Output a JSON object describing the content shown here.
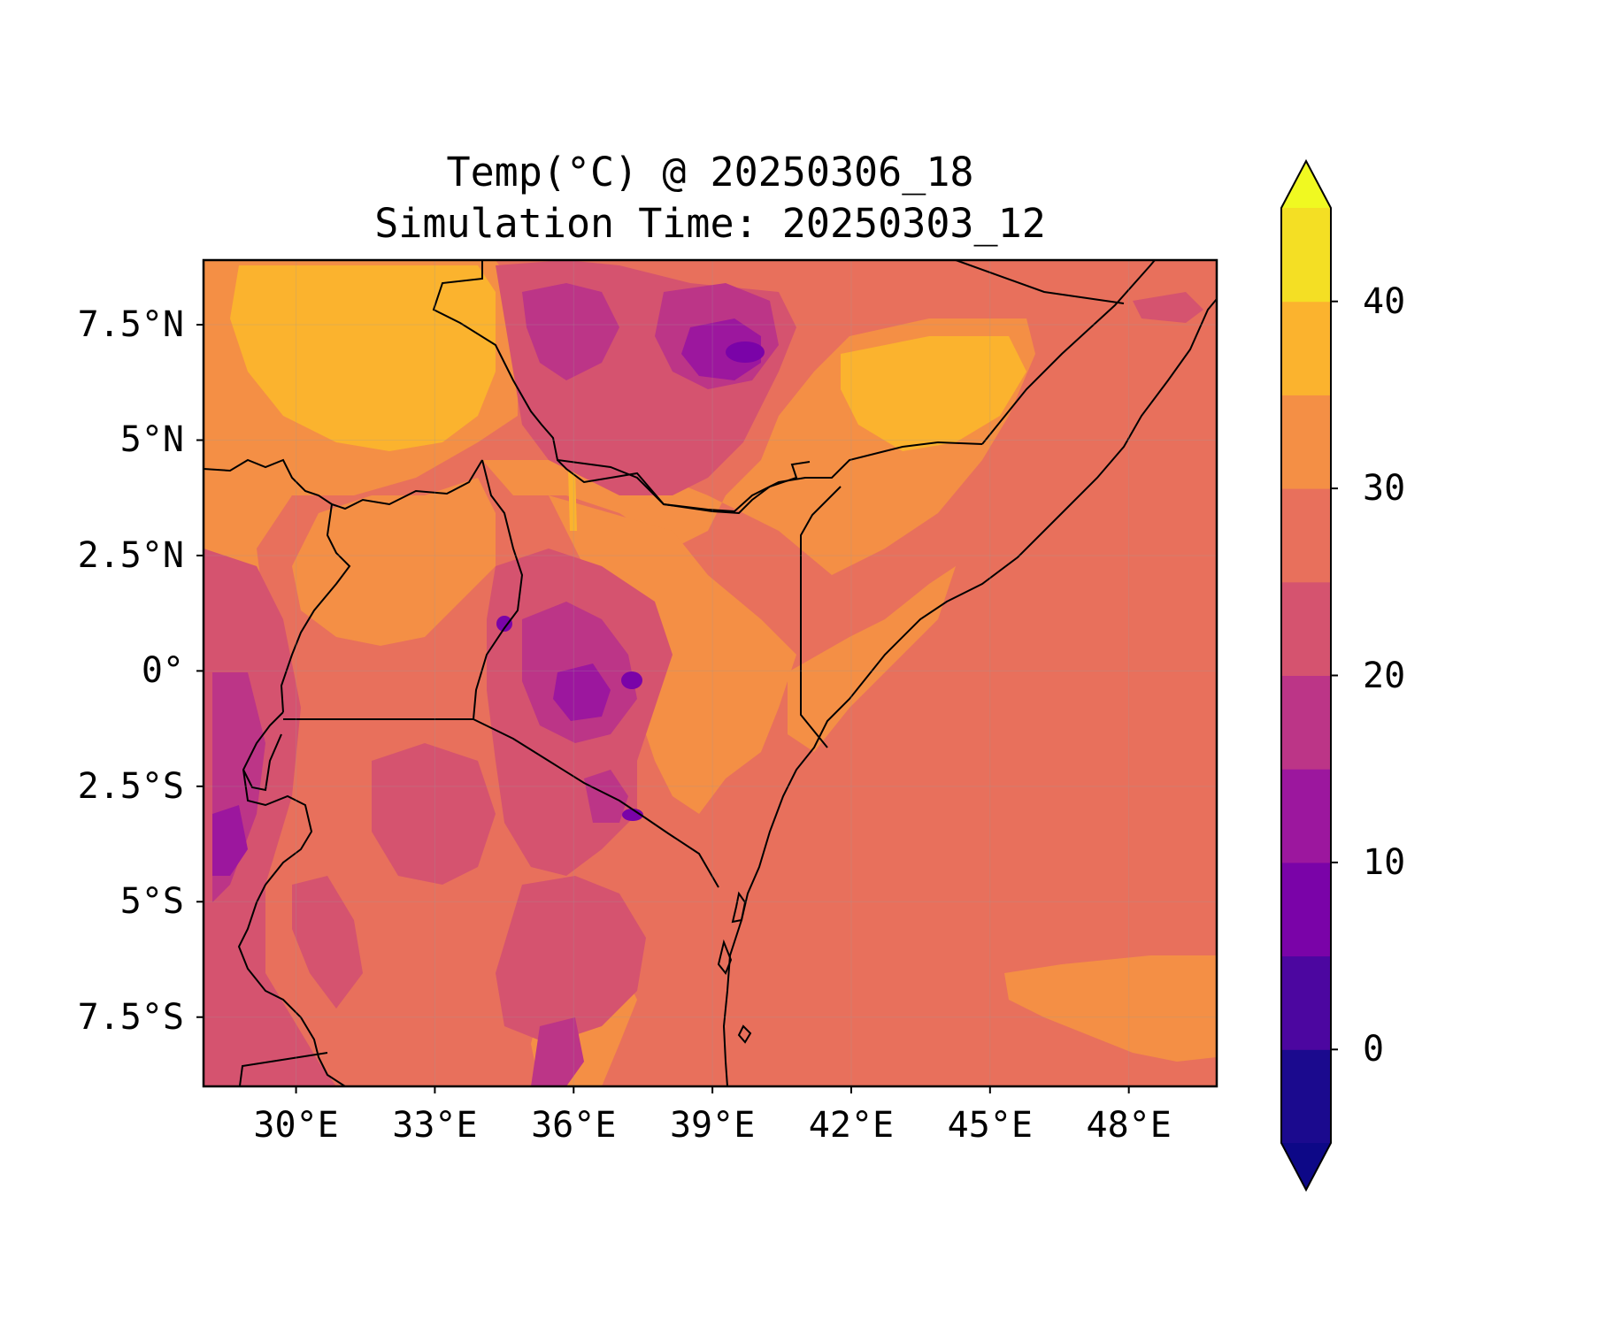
{
  "figure": {
    "title_line1": "Temp(°C) @ 20250306_18",
    "title_line2": "Simulation Time: 20250303_12"
  },
  "map": {
    "extent": {
      "lon_min": 28,
      "lon_max": 49.9,
      "lat_min": -9,
      "lat_max": 8.9
    },
    "lon_ticks": [
      30,
      33,
      36,
      39,
      42,
      45,
      48
    ],
    "lon_tick_labels": [
      "30°E",
      "33°E",
      "36°E",
      "39°E",
      "42°E",
      "45°E",
      "48°E"
    ],
    "lat_ticks": [
      7.5,
      5,
      2.5,
      0,
      -2.5,
      -5,
      -7.5
    ],
    "lat_tick_labels": [
      "7.5°N",
      "5°N",
      "2.5°N",
      "0°",
      "2.5°S",
      "5°S",
      "7.5°S"
    ]
  },
  "colorbar": {
    "levels": [
      -5,
      0,
      5,
      10,
      15,
      20,
      25,
      30,
      35,
      40,
      45
    ],
    "colors": [
      "#1b0a8e",
      "#4c06a0",
      "#7a03a8",
      "#9c179e",
      "#bc3587",
      "#d5536f",
      "#e8705c",
      "#f48f45",
      "#fbb32e",
      "#f4df24"
    ],
    "under_color": "#0d0887",
    "over_color": "#f0f921",
    "tick_values": [
      0,
      10,
      20,
      30,
      40
    ],
    "tick_labels": [
      "0",
      "10",
      "20",
      "30",
      "40"
    ]
  },
  "colors": {
    "ocean_base": "#e8705c",
    "border": "#000000"
  }
}
